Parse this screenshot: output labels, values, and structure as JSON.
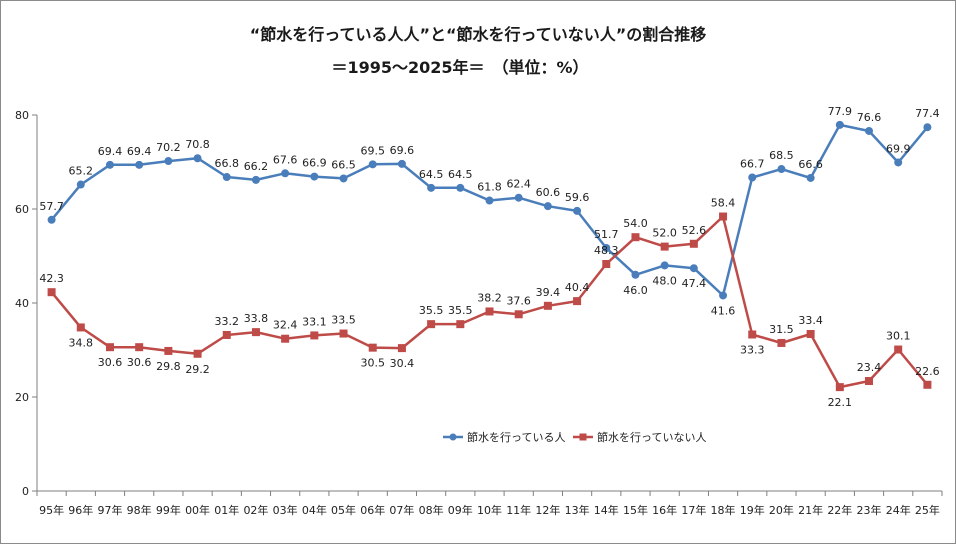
{
  "chart_data": {
    "type": "line",
    "title": "“節水を行っている人人”と“節水を行っていない人”の割合推移",
    "subtitle": "＝1995～2025年＝　（単位：%）",
    "categories": [
      "95年",
      "96年",
      "97年",
      "98年",
      "99年",
      "00年",
      "01年",
      "02年",
      "03年",
      "04年",
      "05年",
      "06年",
      "07年",
      "08年",
      "09年",
      "10年",
      "11年",
      "12年",
      "13年",
      "14年",
      "15年",
      "16年",
      "17年",
      "18年",
      "19年",
      "20年",
      "21年",
      "22年",
      "23年",
      "24年",
      "25年"
    ],
    "ylim": [
      0,
      80
    ],
    "yticks": [
      0,
      20,
      40,
      60,
      80
    ],
    "grid": false,
    "legend_position": "center-right",
    "series": [
      {
        "name": "節水を行っている人",
        "color": "#4a7ebb",
        "marker": "circle",
        "values": [
          57.7,
          65.2,
          69.4,
          69.4,
          70.2,
          70.8,
          66.8,
          66.2,
          67.6,
          66.9,
          66.5,
          69.5,
          69.6,
          64.5,
          64.5,
          61.8,
          62.4,
          60.6,
          59.6,
          51.7,
          46.0,
          48.0,
          47.4,
          41.6,
          66.7,
          68.5,
          66.6,
          77.9,
          76.6,
          69.9,
          77.4
        ],
        "labels": [
          "57.7",
          "65.2",
          "69.4",
          "69.4",
          "70.2",
          "70.8",
          "66.8",
          "66.2",
          "67.6",
          "66.9",
          "66.5",
          "69.5",
          "69.6",
          "64.5",
          "64.5",
          "61.8",
          "62.4",
          "60.6",
          "59.6",
          "51.7",
          "46.0",
          "48.0",
          "47.4",
          "41.6",
          "66.7",
          "68.5",
          "66.6",
          "77.9",
          "76.6",
          "69.9",
          "77.4"
        ]
      },
      {
        "name": "節水を行っていない人",
        "color": "#be4b48",
        "marker": "square",
        "values": [
          42.3,
          34.8,
          30.6,
          30.6,
          29.8,
          29.2,
          33.2,
          33.8,
          32.4,
          33.1,
          33.5,
          30.5,
          30.4,
          35.5,
          35.5,
          38.2,
          37.6,
          39.4,
          40.4,
          48.3,
          54.0,
          52.0,
          52.6,
          58.4,
          33.3,
          31.5,
          33.4,
          22.1,
          23.4,
          30.1,
          22.6
        ],
        "labels": [
          "42.3",
          "34.8",
          "30.6",
          "30.6",
          "29.8",
          "29.2",
          "33.2",
          "33.8",
          "32.4",
          "33.1",
          "33.5",
          "30.5",
          "30.4",
          "35.5",
          "35.5",
          "38.2",
          "37.6",
          "39.4",
          "40.4",
          "48.3",
          "54.0",
          "52.0",
          "52.6",
          "58.4",
          "33.3",
          "31.5",
          "33.4",
          "22.1",
          "23.4",
          "30.1",
          "22.6"
        ]
      }
    ]
  }
}
